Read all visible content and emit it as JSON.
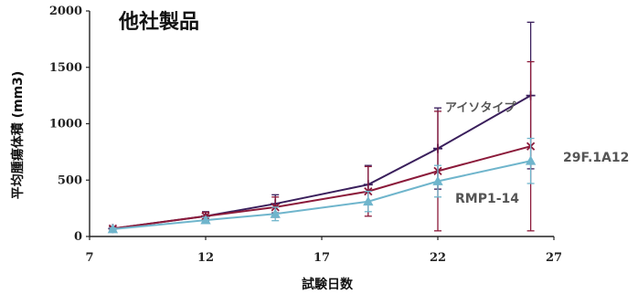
{
  "chart_data": {
    "type": "line",
    "title": "他社製品",
    "xlabel": "試験日数",
    "ylabel": "平均腫瘍体積 (mm3)",
    "xlim": [
      7,
      27
    ],
    "ylim": [
      0,
      2000
    ],
    "xticks": [
      7,
      12,
      17,
      22,
      27
    ],
    "yticks": [
      0,
      500,
      1000,
      1500,
      2000
    ],
    "series": [
      {
        "name": "アイソタイプ",
        "color": "#3a1f5c",
        "marker": "plus",
        "x": [
          8,
          12,
          15,
          19,
          22,
          26
        ],
        "y": [
          70,
          180,
          290,
          460,
          780,
          1250
        ],
        "err": [
          15,
          40,
          80,
          170,
          360,
          650
        ]
      },
      {
        "name": "29F.1A12",
        "color": "#8b1a3a",
        "marker": "x",
        "x": [
          8,
          12,
          15,
          19,
          22,
          26
        ],
        "y": [
          70,
          180,
          260,
          400,
          580,
          800
        ],
        "err": [
          15,
          35,
          90,
          220,
          530,
          750
        ]
      },
      {
        "name": "RMP1-14",
        "color": "#6fb5cc",
        "marker": "triangle",
        "x": [
          8,
          12,
          15,
          19,
          22,
          26
        ],
        "y": [
          65,
          145,
          200,
          310,
          490,
          670
        ],
        "err": [
          10,
          25,
          60,
          90,
          140,
          200
        ]
      }
    ]
  }
}
